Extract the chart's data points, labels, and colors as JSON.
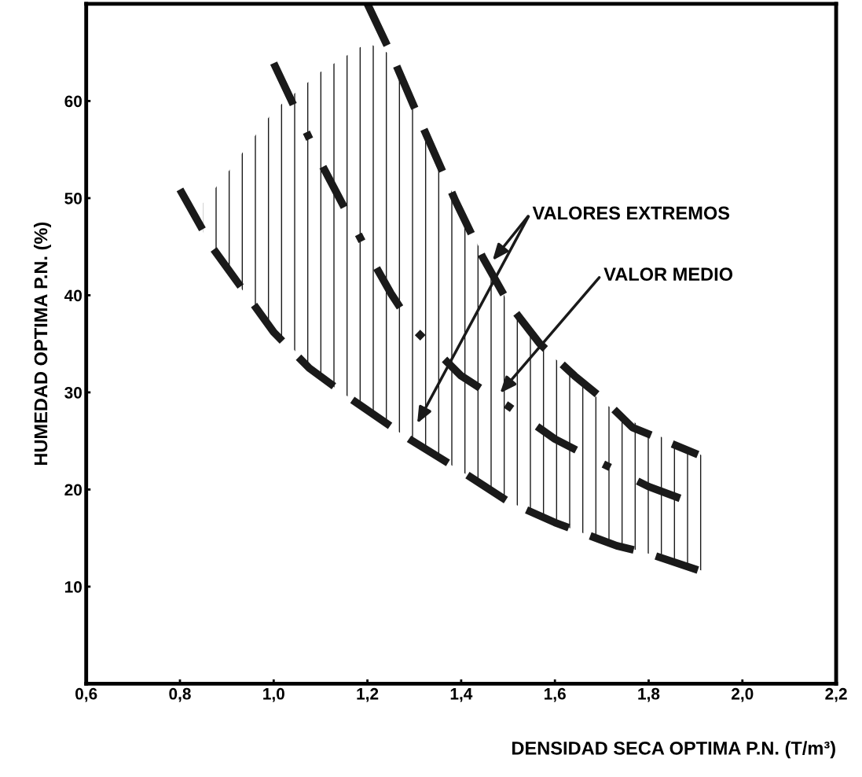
{
  "chart_data": {
    "type": "line",
    "xlabel": "DENSIDAD SECA OPTIMA P.N. (T/m³)",
    "ylabel": "HUMEDAD OPTIMA P.N. (%)",
    "xlim": [
      0.6,
      2.2
    ],
    "ylim": [
      0,
      70
    ],
    "xticks": [
      {
        "value": 0.6,
        "label": "0,6"
      },
      {
        "value": 0.8,
        "label": "0,8"
      },
      {
        "value": 1.0,
        "label": "1,0"
      },
      {
        "value": 1.2,
        "label": "1,2"
      },
      {
        "value": 1.4,
        "label": "1,4"
      },
      {
        "value": 1.6,
        "label": "1,6"
      },
      {
        "value": 1.8,
        "label": "1,8"
      },
      {
        "value": 2.0,
        "label": "2,0"
      },
      {
        "value": 2.2,
        "label": "2,2"
      }
    ],
    "yticks": [
      10,
      20,
      30,
      40,
      50,
      60
    ],
    "grid": false,
    "marker": "none",
    "series": [
      {
        "color": "#1a1a1a",
        "line_style": "dashed",
        "x": [
          1.2,
          1.256,
          1.314,
          1.388,
          1.445,
          1.502,
          1.568,
          1.642,
          1.708,
          1.765,
          1.905
        ],
        "values": [
          70,
          64.3,
          57.8,
          49.7,
          44.0,
          39.1,
          35.0,
          31.7,
          29.1,
          26.4,
          23.6
        ]
      },
      {
        "color": "#1a1a1a",
        "line_style": "dashdot",
        "x": [
          0.85,
          0.9,
          1.0,
          1.1,
          1.2,
          1.25,
          1.3,
          1.4,
          1.5,
          1.6,
          1.7,
          1.8,
          1.9,
          1.92
        ],
        "values": [
          null,
          null,
          63.9,
          53.7,
          44.5,
          40.2,
          36.5,
          31.7,
          28.6,
          25.2,
          22.7,
          20.3,
          18.5,
          18.2
        ],
        "upper": [
          49.5,
          52.5,
          59,
          63,
          66,
          64.8,
          59.3,
          48.5,
          39.2,
          33.5,
          29,
          26,
          23.8,
          23.4
        ],
        "lower": [
          46.5,
          42.5,
          36.6,
          31.5,
          28.2,
          26.5,
          24.8,
          21.9,
          18.8,
          16.6,
          14.8,
          13.4,
          11.8,
          11.6
        ]
      },
      {
        "color": "#1a1a1a",
        "line_style": "dashed",
        "x": [
          0.8,
          0.871,
          1.0,
          1.076,
          1.166,
          1.289,
          1.4,
          1.502,
          1.6,
          1.732,
          1.8,
          1.905
        ],
        "values": [
          50.9,
          44.8,
          36.2,
          32.5,
          29.3,
          25.2,
          21.9,
          18.7,
          16.6,
          14.2,
          13.4,
          11.7
        ]
      }
    ],
    "annotations": [
      "VALORES EXTREMOS",
      "VALOR MEDIO"
    ]
  }
}
